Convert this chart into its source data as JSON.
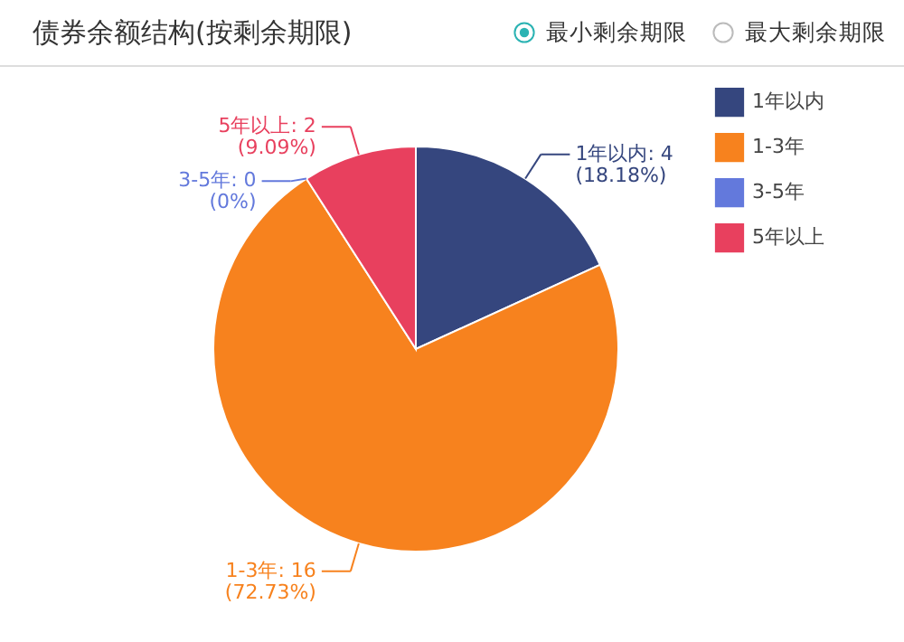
{
  "chart_data": {
    "type": "pie",
    "title": "债券余额结构(按剩余期限)",
    "annotations": [
      "最小剩余期限",
      "最大剩余期限"
    ],
    "categories": [
      "1年以内",
      "1-3年",
      "3-5年",
      "5年以上"
    ],
    "values": [
      4,
      16,
      0,
      2
    ],
    "colors": [
      "#35467e",
      "#f7821e",
      "#6379dc",
      "#e8405e"
    ],
    "value_labels": [
      "1年以内: 4\n(18.18%)",
      "1-3年: 16\n(72.73%)",
      "3-5年: 0\n(0%)",
      "5年以上: 2\n(9.09%)"
    ],
    "legend": "top right"
  }
}
